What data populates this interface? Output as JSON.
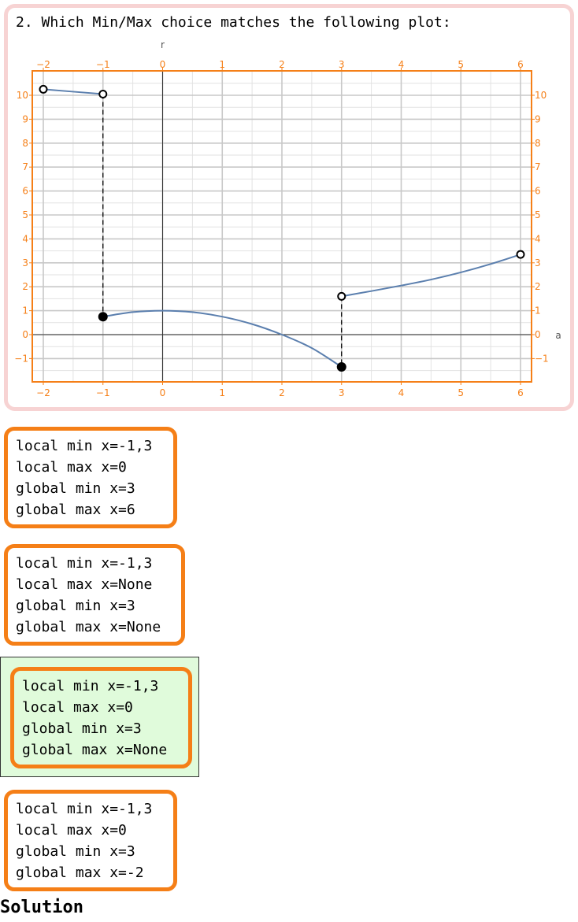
{
  "question": {
    "text": "2. Which Min/Max choice matches the following plot:"
  },
  "chart_data": {
    "type": "line",
    "xlabel": "a",
    "ylabel": "r",
    "xlim": [
      -2,
      6
    ],
    "ylim": [
      -1.5,
      11
    ],
    "x_ticks": [
      -2,
      -1,
      0,
      1,
      2,
      3,
      4,
      5,
      6
    ],
    "y_ticks": [
      -1,
      0,
      1,
      2,
      3,
      4,
      5,
      6,
      7,
      8,
      9,
      10
    ],
    "grid": true,
    "colors": {
      "curve": "#5b7fae",
      "frame": "#f57f17",
      "grid": "#c8c8c8"
    },
    "series": [
      {
        "points": [
          [
            -2,
            10.25
          ],
          [
            -1,
            10.05
          ]
        ]
      },
      {
        "points": [
          [
            -1,
            0.75
          ],
          [
            -0.5,
            0.94
          ],
          [
            0,
            1.0
          ],
          [
            0.5,
            0.94
          ],
          [
            1,
            0.75
          ],
          [
            1.5,
            0.44
          ],
          [
            2,
            0.0
          ],
          [
            2.5,
            -0.56
          ],
          [
            3,
            -1.35
          ]
        ]
      },
      {
        "points": [
          [
            3,
            1.6
          ],
          [
            3.5,
            1.82
          ],
          [
            4,
            2.05
          ],
          [
            4.5,
            2.3
          ],
          [
            5,
            2.6
          ],
          [
            5.5,
            2.95
          ],
          [
            6,
            3.35
          ]
        ]
      }
    ],
    "open_points": [
      [
        -2,
        10.25
      ],
      [
        -1,
        10.05
      ],
      [
        3,
        1.6
      ],
      [
        6,
        3.35
      ]
    ],
    "closed_points": [
      [
        -1,
        0.75
      ],
      [
        3,
        -1.35
      ]
    ],
    "dashed_jumps": [
      [
        -1,
        10.05,
        0.75
      ],
      [
        3,
        1.6,
        -1.35
      ]
    ]
  },
  "choices": [
    {
      "lines": [
        "local min x=-1,3",
        "local max x=0",
        "global min x=3",
        "global max x=6"
      ]
    },
    {
      "lines": [
        "local min x=-1,3",
        "local max x=None",
        "global min x=3",
        "global max x=None"
      ]
    },
    {
      "lines": [
        "local min x=-1,3",
        "local max x=0",
        "global min x=3",
        "global max x=None"
      ],
      "selected": true
    },
    {
      "lines": [
        "local min x=-1,3",
        "local max x=0",
        "global min x=3",
        "global max x=-2"
      ]
    }
  ],
  "solution": {
    "label": "Solution"
  }
}
